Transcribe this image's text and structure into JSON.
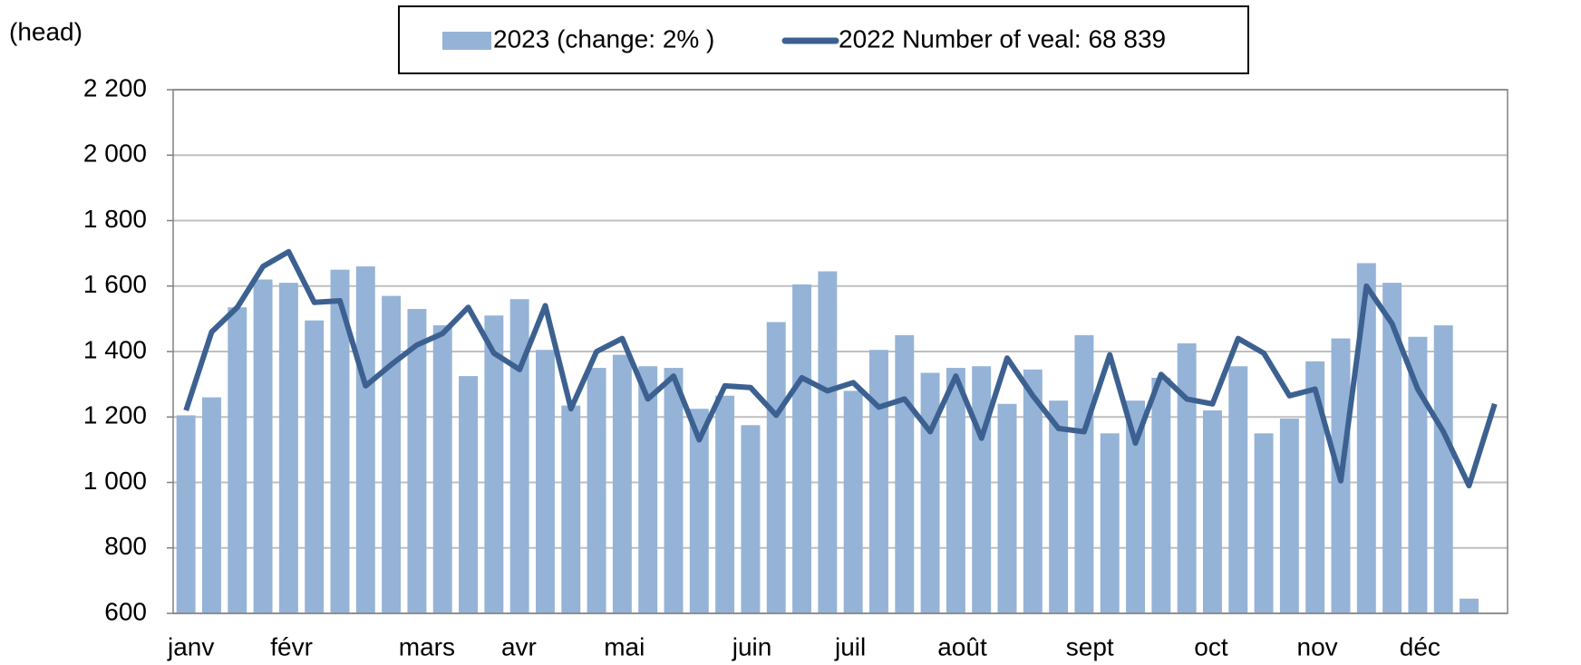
{
  "chart_data": {
    "type": "bar_line",
    "y_unit_label": "(head)",
    "categories": [
      "janv",
      null,
      null,
      null,
      "févr",
      null,
      null,
      null,
      null,
      "mars",
      null,
      null,
      null,
      "avr",
      null,
      null,
      null,
      "mai",
      null,
      null,
      null,
      null,
      "juin",
      null,
      null,
      null,
      "juil",
      null,
      null,
      null,
      "août",
      null,
      null,
      null,
      null,
      "sept",
      null,
      null,
      null,
      null,
      "oct",
      null,
      null,
      null,
      "nov",
      null,
      null,
      null,
      "déc",
      null,
      null,
      null
    ],
    "series": [
      {
        "name": "2023 (change: 2% )",
        "type": "bar",
        "color": "#95b3d7",
        "values": [
          1205,
          1260,
          1535,
          1620,
          1610,
          1495,
          1650,
          1660,
          1570,
          1530,
          1480,
          1325,
          1510,
          1560,
          1405,
          1235,
          1350,
          1390,
          1355,
          1350,
          1225,
          1265,
          1175,
          1490,
          1605,
          1645,
          1280,
          1405,
          1450,
          1335,
          1350,
          1355,
          1240,
          1345,
          1250,
          1450,
          1150,
          1250,
          1320,
          1425,
          1220,
          1355,
          1150,
          1195,
          1370,
          1440,
          1670,
          1610,
          1445,
          1480,
          645,
          null
        ]
      },
      {
        "name": "2022 Number of veal: 68 839",
        "type": "line",
        "color": "#3c6191",
        "values": [
          1220,
          1460,
          1535,
          1660,
          1705,
          1550,
          1555,
          1295,
          1360,
          1420,
          1455,
          1535,
          1395,
          1345,
          1540,
          1225,
          1400,
          1440,
          1255,
          1325,
          1130,
          1295,
          1290,
          1205,
          1320,
          1280,
          1305,
          1230,
          1255,
          1155,
          1325,
          1135,
          1380,
          1265,
          1165,
          1155,
          1390,
          1120,
          1330,
          1255,
          1240,
          1440,
          1395,
          1265,
          1285,
          1005,
          1600,
          1485,
          1285,
          1155,
          990,
          1240
        ]
      }
    ],
    "ylim": [
      600,
      2200
    ],
    "yticks": [
      600,
      800,
      {
        "value": 1000,
        "label": "1 000"
      },
      {
        "value": 1200,
        "label": "1 200"
      },
      {
        "value": 1400,
        "label": "1 400"
      },
      {
        "value": 1600,
        "label": "1 600"
      },
      {
        "value": 1800,
        "label": "1 800"
      },
      {
        "value": 2000,
        "label": "2 000"
      },
      {
        "value": 2200,
        "label": "2 200"
      }
    ],
    "grid": true,
    "legend": "top"
  }
}
